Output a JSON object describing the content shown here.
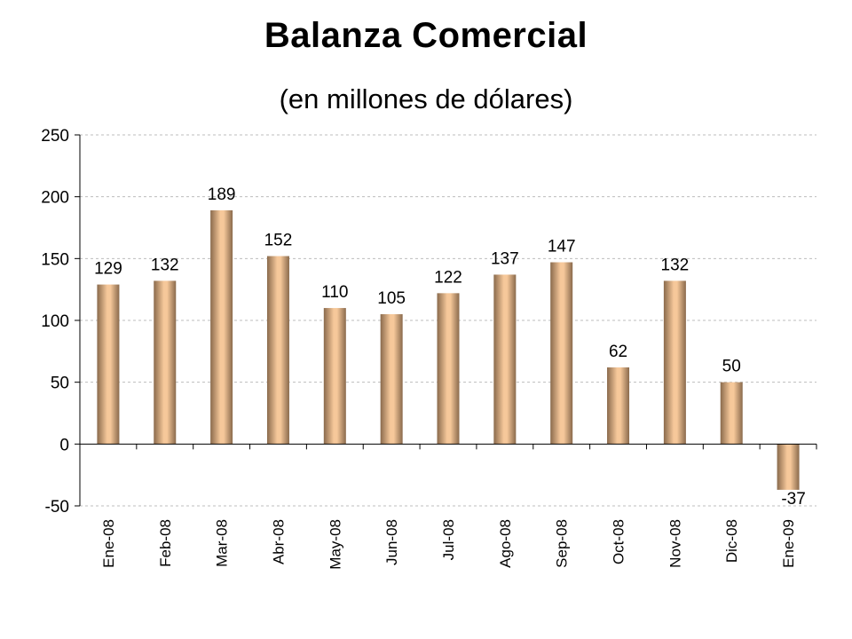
{
  "chart_data": {
    "type": "bar",
    "title": "Balanza Comercial",
    "subtitle": "(en millones de dólares)",
    "categories": [
      "Ene-08",
      "Feb-08",
      "Mar-08",
      "Abr-08",
      "May-08",
      "Jun-08",
      "Jul-08",
      "Ago-08",
      "Sep-08",
      "Oct-08",
      "Nov-08",
      "Dic-08",
      "Ene-09"
    ],
    "values": [
      129,
      132,
      189,
      152,
      110,
      105,
      122,
      137,
      147,
      62,
      132,
      50,
      -37
    ],
    "ylim": [
      -50,
      250
    ],
    "yticks": [
      -50,
      0,
      50,
      100,
      150,
      200,
      250
    ],
    "xlabel": "",
    "ylabel": "",
    "grid": "horizontal dashed",
    "legend": "none",
    "colors": {
      "bar_light": "#f6c89a",
      "bar_dark": "#8a6a4c",
      "grid": "#bdbdbd",
      "axis": "#000000"
    }
  }
}
